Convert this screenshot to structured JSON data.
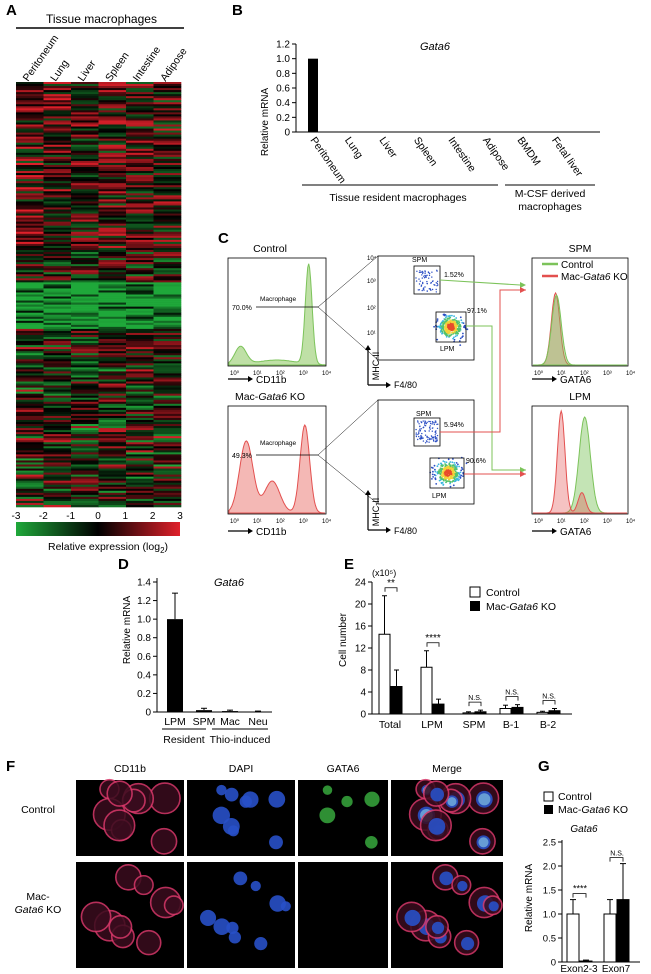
{
  "panels": {
    "A": {
      "label": "A",
      "header": "Tissue macrophages",
      "columns": [
        "Peritoneum",
        "Lung",
        "Liver",
        "Spleen",
        "Intestine",
        "Adipose"
      ],
      "scale_ticks": [
        "-3",
        "-2",
        "-1",
        "0",
        "1",
        "2",
        "3"
      ],
      "scale_title": "Relative expression (log",
      "scale_sub": "2",
      "scale_close": ")",
      "colors": {
        "low": "#1fa83a",
        "mid": "#000000",
        "high": "#e0202a"
      }
    },
    "B": {
      "label": "B",
      "gene": "Gata6",
      "ylabel": "Relative mRNA",
      "yticks": [
        "0",
        "0.2",
        "0.4",
        "0.6",
        "0.8",
        "1.0",
        "1.2"
      ],
      "group1": "Tissue resident macrophages",
      "group2_line1": "M-CSF derived",
      "group2_line2": "macrophages"
    },
    "C": {
      "label": "C",
      "control": "Control",
      "ko": "Mac-Gata6 KO",
      "ko_prefix": "Mac-",
      "ko_gene": "Gata6",
      "ko_suffix": " KO",
      "macrophage": "Macrophage",
      "ctrl_pct": "70.0%",
      "ko_pct": "49.3%",
      "spm": "SPM",
      "lpm": "LPM",
      "ctrl_spm_pct": "1.52%",
      "ctrl_lpm_pct": "97.1%",
      "ko_spm_pct": "5.94%",
      "ko_lpm_pct": "90.6%",
      "xaxis_cd11b": "CD11b",
      "xaxis_f480": "F4/80",
      "yaxis_mhc": "MHC-II",
      "xaxis_gata6": "GATA6",
      "tick_labels": [
        "10⁰",
        "10¹",
        "10²",
        "10³",
        "10⁴"
      ],
      "legend_control": "Control",
      "legend_ko": "Mac-Gata6 KO",
      "colors": {
        "control": "#7cc35a",
        "ko": "#e3504f"
      }
    },
    "D": {
      "label": "D",
      "gene": "Gata6",
      "ylabel": "Relative mRNA",
      "yticks": [
        "0",
        "0.2",
        "0.4",
        "0.6",
        "0.8",
        "1.0",
        "1.2",
        "1.4"
      ],
      "group1": "Resident",
      "group2": "Thio-induced"
    },
    "E": {
      "label": "E",
      "multiplier": "(x10⁵)",
      "ylabel": "Cell number",
      "yticks": [
        "0",
        "4",
        "8",
        "12",
        "16",
        "20",
        "24"
      ],
      "legend_control": "Control",
      "legend_ko_prefix": "Mac-",
      "legend_ko_gene": "Gata6",
      "legend_ko_suffix": " KO",
      "sig": [
        "**",
        "****",
        "N.S.",
        "N.S.",
        "N.S."
      ]
    },
    "F": {
      "label": "F",
      "channels": [
        "CD11b",
        "DAPI",
        "GATA6",
        "Merge"
      ],
      "row1": "Control",
      "row2_line1": "Mac-",
      "row2_gene": "Gata6",
      "row2_suffix": " KO"
    },
    "G": {
      "label": "G",
      "gene": "Gata6",
      "ylabel": "Relative mRNA",
      "yticks": [
        "0",
        "0.5",
        "1.0",
        "1.5",
        "2.0",
        "2.5"
      ],
      "legend_control": "Control",
      "legend_ko_prefix": "Mac-",
      "legend_ko_gene": "Gata6",
      "legend_ko_suffix": " KO",
      "sig": [
        "****",
        "N.S."
      ]
    }
  },
  "chart_data": [
    {
      "type": "bar",
      "panel": "B",
      "title": "Gata6",
      "ylabel": "Relative mRNA",
      "ylim": [
        0,
        1.2
      ],
      "categories": [
        "Peritoneum",
        "Lung",
        "Liver",
        "Spleen",
        "Intestine",
        "Adipose",
        "BMDM",
        "Fetal liver"
      ],
      "values": [
        1.0,
        0.005,
        0.005,
        0.005,
        0.005,
        0.005,
        0.005,
        0.005
      ]
    },
    {
      "type": "bar",
      "panel": "D",
      "title": "Gata6",
      "ylabel": "Relative mRNA",
      "ylim": [
        0,
        1.4
      ],
      "categories": [
        "LPM",
        "SPM",
        "Mac",
        "Neu"
      ],
      "values": [
        1.0,
        0.02,
        0.01,
        0.005
      ],
      "errors": [
        0.28,
        0.02,
        0.01,
        0.005
      ]
    },
    {
      "type": "bar",
      "panel": "E",
      "ylabel": "Cell number",
      "ylim": [
        0,
        24
      ],
      "categories": [
        "Total",
        "LPM",
        "SPM",
        "B-1",
        "B-2"
      ],
      "series": [
        {
          "name": "Control",
          "values": [
            14.5,
            8.5,
            0.2,
            1.0,
            0.3
          ],
          "errors": [
            7.0,
            3.0,
            0.2,
            0.6,
            0.2
          ]
        },
        {
          "name": "Mac-Gata6 KO",
          "values": [
            5.0,
            1.8,
            0.4,
            1.2,
            0.6
          ],
          "errors": [
            3.0,
            0.9,
            0.3,
            0.5,
            0.4
          ]
        }
      ]
    },
    {
      "type": "bar",
      "panel": "G",
      "title": "Gata6",
      "ylabel": "Relative mRNA",
      "ylim": [
        0,
        2.5
      ],
      "categories": [
        "Exon2-3",
        "Exon7"
      ],
      "series": [
        {
          "name": "Control",
          "values": [
            1.0,
            1.0
          ],
          "errors": [
            0.3,
            0.3
          ]
        },
        {
          "name": "Mac-Gata6 KO",
          "values": [
            0.02,
            1.3
          ],
          "errors": [
            0.02,
            0.75
          ]
        }
      ]
    }
  ]
}
